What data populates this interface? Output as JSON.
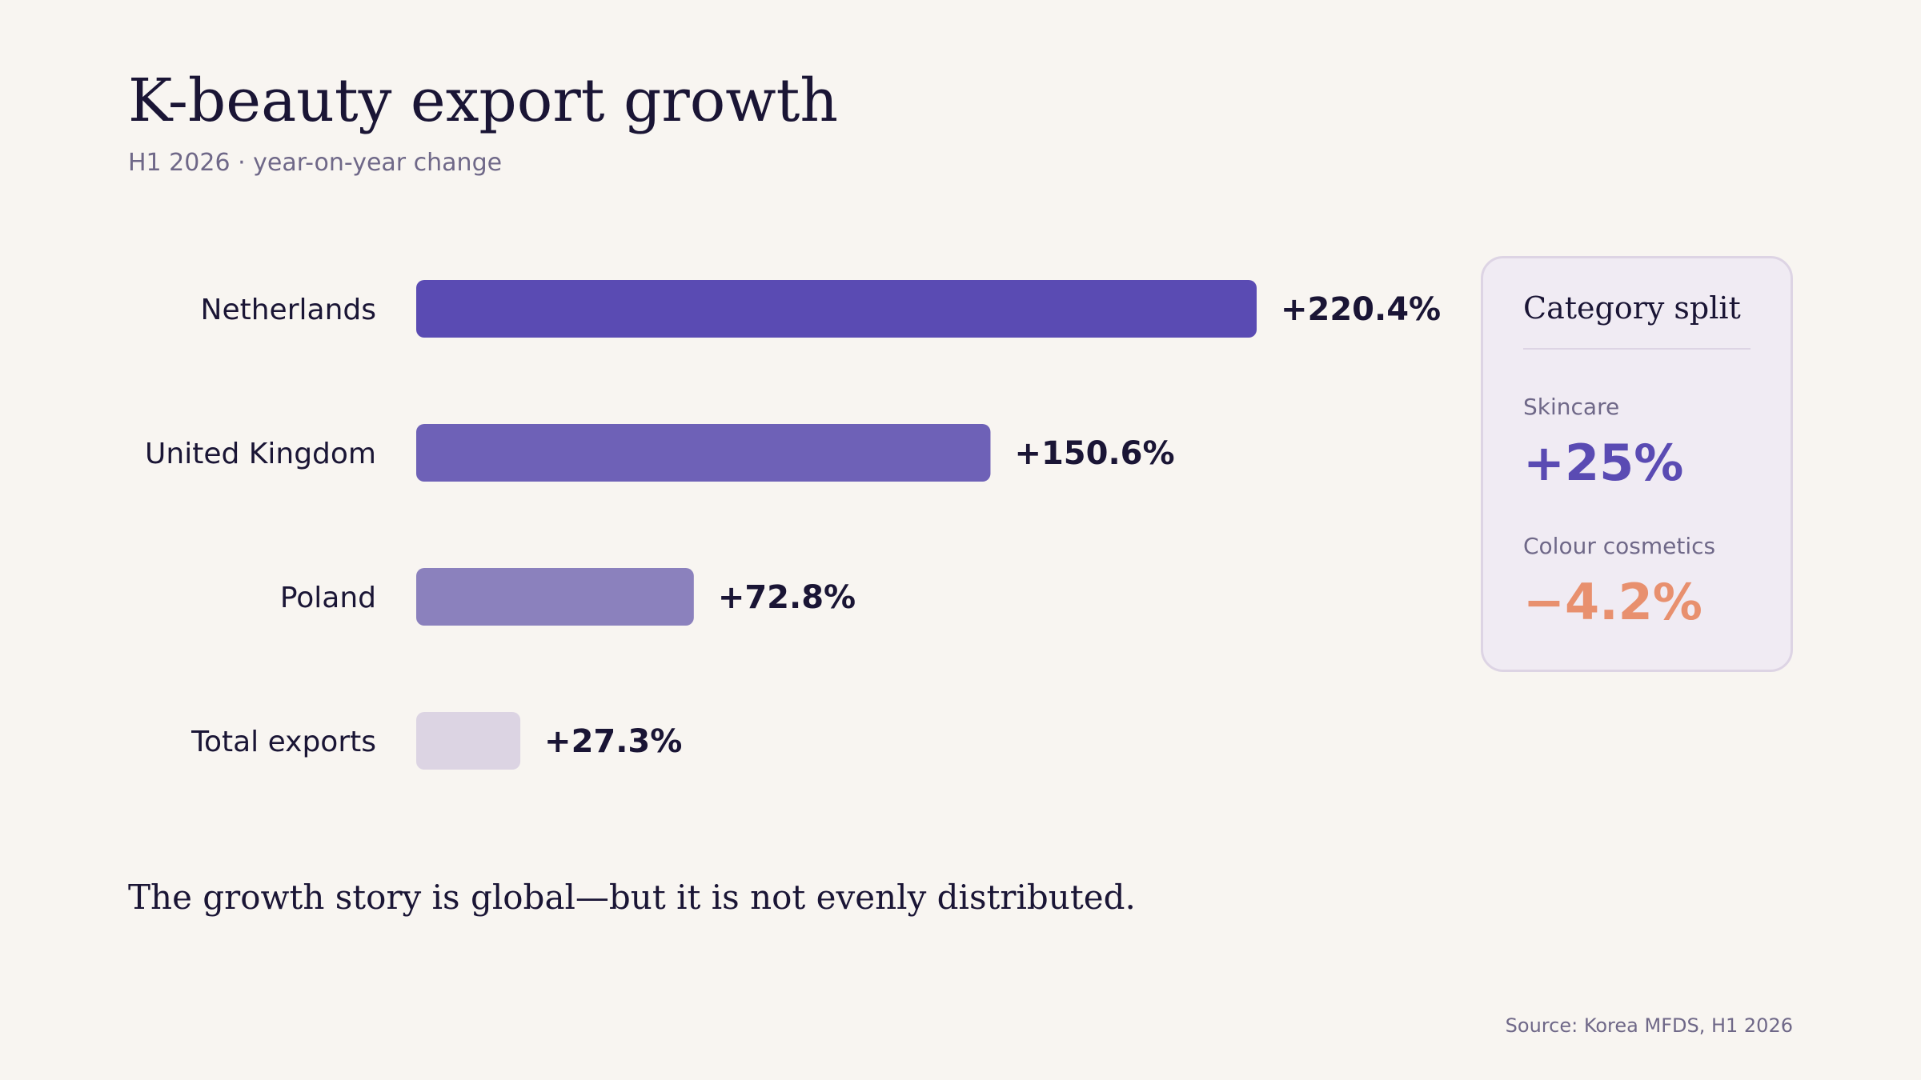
{
  "header": {
    "title": "K-beauty export growth",
    "subtitle": "H1 2026 · year-on-year change"
  },
  "chart_data": {
    "type": "bar",
    "orientation": "horizontal",
    "categories": [
      "Netherlands",
      "United Kingdom",
      "Poland",
      "Total exports"
    ],
    "values": [
      220.4,
      150.6,
      72.8,
      27.3
    ],
    "value_labels": [
      "+220.4%",
      "+150.6%",
      "+72.8%",
      "+27.3%"
    ],
    "bar_colors": [
      "#5a4bb3",
      "#6e61b7",
      "#8b81bd",
      "#dcd4e3"
    ],
    "title": "",
    "xlabel": "",
    "ylabel": "",
    "grid": false
  },
  "category_card": {
    "title": "Category split",
    "metrics": [
      {
        "label": "Skincare",
        "value": "+25%",
        "color": "#5a4bb3"
      },
      {
        "label": "Colour cosmetics",
        "value": "−4.2%",
        "color": "#e8906e"
      }
    ]
  },
  "caption": "The growth story is global—but it is not evenly distributed.",
  "source": "Source: Korea MFDS, H1 2026"
}
